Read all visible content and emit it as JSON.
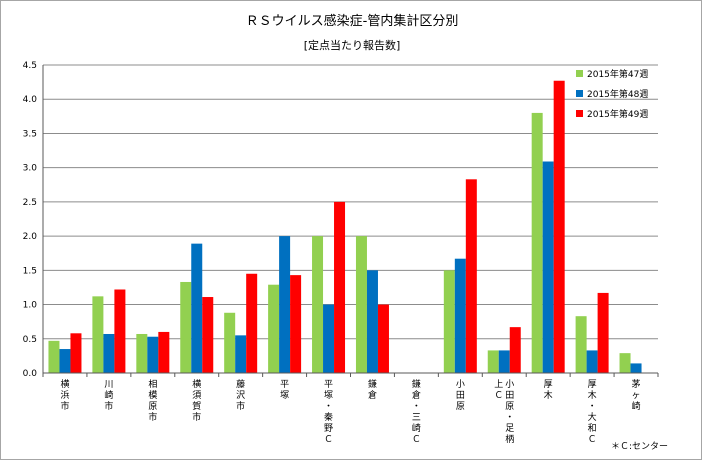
{
  "chart_data": {
    "type": "bar",
    "title": "ＲＳウイルス感染症-管内集計区分別",
    "subtitle": "[定点当たり報告数]",
    "ylim": [
      0,
      4.5
    ],
    "yticks": [
      "0.0",
      "0.5",
      "1.0",
      "1.5",
      "2.0",
      "2.5",
      "3.0",
      "3.5",
      "4.0",
      "4.5"
    ],
    "grid": true,
    "legend_position": "top-right",
    "categories": [
      "横浜市",
      "川崎市",
      "相模原市",
      "横須賀市",
      "藤沢市",
      "平塚",
      "平塚・秦野Ｃ",
      "鎌倉",
      "鎌倉・三崎Ｃ",
      "小田原",
      "小田原・足柄上Ｃ",
      "厚木",
      "厚木・大和Ｃ",
      "茅ヶ崎"
    ],
    "series": [
      {
        "name": "2015年第47週",
        "color": "#92d050",
        "values": [
          0.47,
          1.12,
          0.57,
          1.33,
          0.88,
          1.29,
          2.0,
          2.0,
          0,
          1.5,
          0.33,
          3.8,
          0.83,
          0.29
        ]
      },
      {
        "name": "2015年第48週",
        "color": "#0070c0",
        "values": [
          0.35,
          0.57,
          0.53,
          1.89,
          0.55,
          2.0,
          1.0,
          1.5,
          0,
          1.67,
          0.33,
          3.09,
          0.33,
          0.14
        ]
      },
      {
        "name": "2015年第49週",
        "color": "#ff0000",
        "values": [
          0.58,
          1.22,
          0.6,
          1.11,
          1.45,
          1.43,
          2.5,
          1.0,
          0,
          2.83,
          0.67,
          4.27,
          1.17,
          null
        ]
      }
    ],
    "footnote": "＊Ｃ:センター"
  }
}
